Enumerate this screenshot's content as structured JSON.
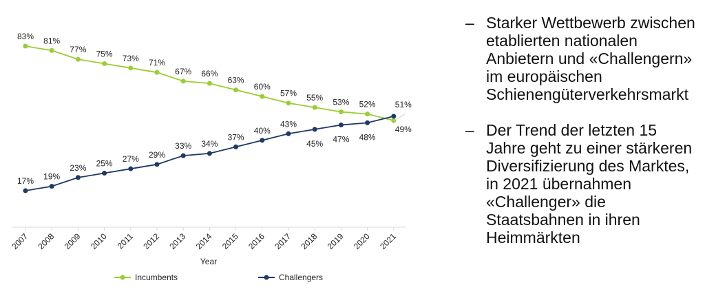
{
  "chart_data": {
    "type": "line",
    "x": [
      "2007",
      "2008",
      "2009",
      "2010",
      "2011",
      "2012",
      "2013",
      "2014",
      "2015",
      "2016",
      "2017",
      "2018",
      "2019",
      "2020",
      "2021"
    ],
    "series": [
      {
        "name": "Incumbents",
        "color": "#9ACD32",
        "values": [
          83,
          81,
          77,
          75,
          73,
          71,
          67,
          66,
          63,
          60,
          57,
          55,
          53,
          52,
          49
        ],
        "labels": [
          "83%",
          "81%",
          "77%",
          "75%",
          "73%",
          "71%",
          "67%",
          "66%",
          "63%",
          "60%",
          "57%",
          "55%",
          "53%",
          "52%",
          "49%"
        ]
      },
      {
        "name": "Challengers",
        "color": "#1F3864",
        "values": [
          17,
          19,
          23,
          25,
          27,
          29,
          33,
          34,
          37,
          40,
          43,
          45,
          47,
          48,
          51
        ],
        "labels": [
          "17%",
          "19%",
          "23%",
          "25%",
          "27%",
          "29%",
          "33%",
          "34%",
          "37%",
          "40%",
          "43%",
          "45%",
          "47%",
          "48%",
          "51%"
        ]
      }
    ],
    "xlabel": "Year",
    "ylabel": "",
    "ylim": [
      0,
      100
    ],
    "legend_position": "bottom"
  },
  "bullets": [
    {
      "dash": "–",
      "text": "Starker Wettbewerb zwischen etablierten nationalen Anbietern und «Challengern» im europäischen Schienengüterverkehrsmarkt"
    },
    {
      "dash": "–",
      "text": "Der Trend der letzten 15 Jahre geht zu einer stärkeren Diversifizierung des Marktes, in 2021 übernahmen «Challenger» die Staatsbahnen in ihren Heimmärkten"
    }
  ]
}
